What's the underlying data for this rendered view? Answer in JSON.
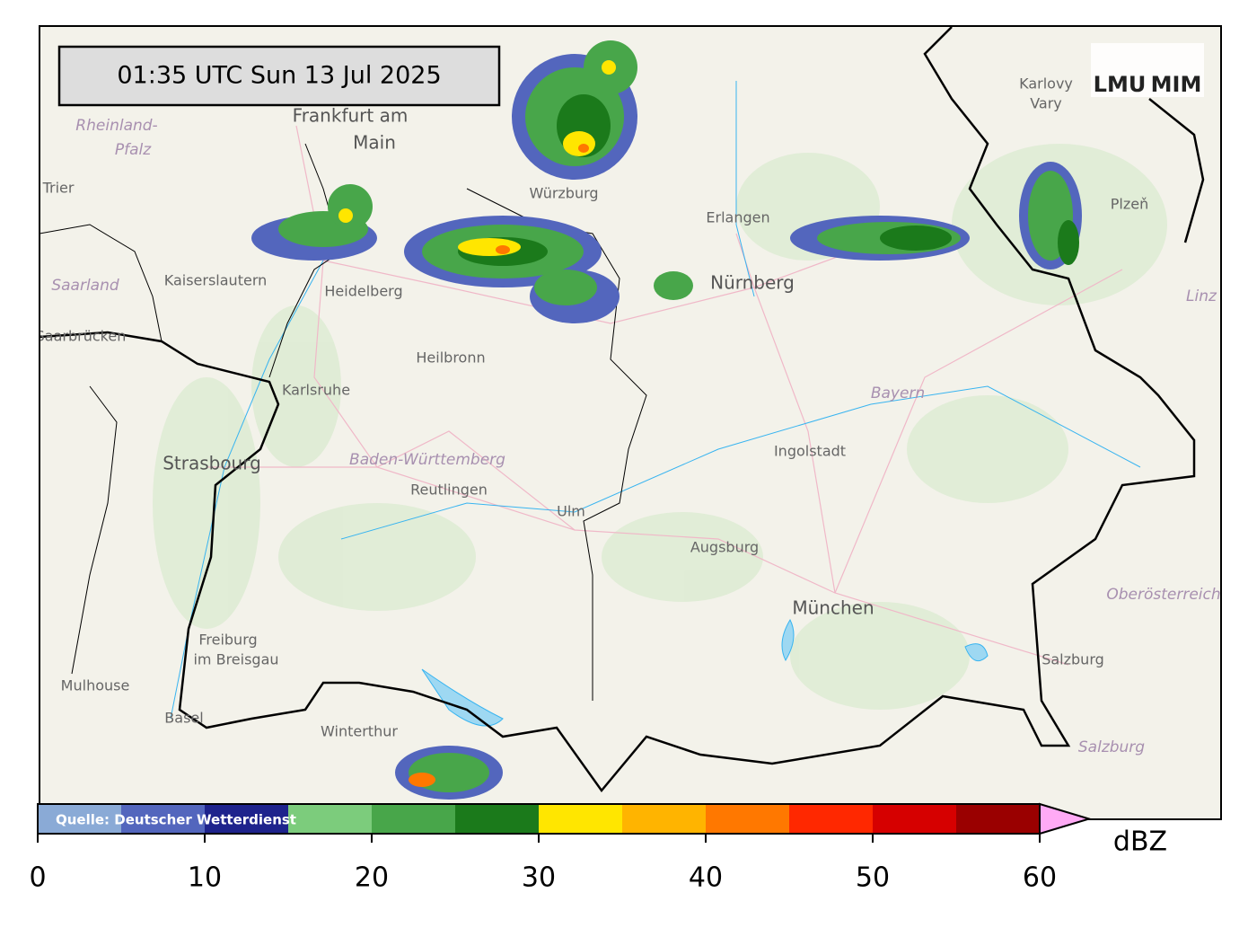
{
  "timestamp": "01:35 UTC  Sun 13 Jul 2025",
  "logos": [
    "LMU",
    "MIM"
  ],
  "map": {
    "labels": [
      {
        "text": "Frankfurt am",
        "kind": "city"
      },
      {
        "text": "Main",
        "kind": "city"
      },
      {
        "text": "Rheinland-",
        "kind": "region"
      },
      {
        "text": "Pfalz",
        "kind": "region"
      },
      {
        "text": "Trier",
        "kind": "town"
      },
      {
        "text": "Kaiserslautern",
        "kind": "town"
      },
      {
        "text": "Saarland",
        "kind": "region"
      },
      {
        "text": "Saarbrücken",
        "kind": "town"
      },
      {
        "text": "Heidelberg",
        "kind": "town"
      },
      {
        "text": "Heilbronn",
        "kind": "town"
      },
      {
        "text": "Karlsruhe",
        "kind": "town"
      },
      {
        "text": "Strasbourg",
        "kind": "city"
      },
      {
        "text": "Baden-Württemberg",
        "kind": "region"
      },
      {
        "text": "Reutlingen",
        "kind": "town"
      },
      {
        "text": "Ulm",
        "kind": "town"
      },
      {
        "text": "Augsburg",
        "kind": "town"
      },
      {
        "text": "Ingolstadt",
        "kind": "town"
      },
      {
        "text": "Bayern",
        "kind": "region"
      },
      {
        "text": "München",
        "kind": "city"
      },
      {
        "text": "Nürnberg",
        "kind": "city"
      },
      {
        "text": "Erlangen",
        "kind": "town"
      },
      {
        "text": "Würzburg",
        "kind": "town"
      },
      {
        "text": "Freiburg",
        "kind": "town"
      },
      {
        "text": "im Breisgau",
        "kind": "town"
      },
      {
        "text": "Mulhouse",
        "kind": "town"
      },
      {
        "text": "Basel",
        "kind": "town"
      },
      {
        "text": "Winterthur",
        "kind": "town"
      },
      {
        "text": "Salzburg",
        "kind": "town"
      },
      {
        "text": "Salzburg",
        "kind": "region"
      },
      {
        "text": "Oberösterreich",
        "kind": "region"
      },
      {
        "text": "Plzeň",
        "kind": "town"
      },
      {
        "text": "Karlovy",
        "kind": "town"
      },
      {
        "text": "Vary",
        "kind": "town"
      },
      {
        "text": "Linz",
        "kind": "region"
      }
    ]
  },
  "colorbar": {
    "source": "Quelle: Deutscher Wetterdienst",
    "unit": "dBZ",
    "lim": [
      0,
      60
    ],
    "ticks": [
      0,
      10,
      20,
      30,
      40,
      50,
      60
    ],
    "levels": [
      0,
      5,
      10,
      15,
      20,
      25,
      30,
      35,
      40,
      45,
      50,
      55,
      60
    ],
    "colors": [
      "#8aaad6",
      "#5366bd",
      "#1e238c",
      "#7ccc7c",
      "#48a64a",
      "#1b7a1b",
      "#ffe600",
      "#ffb400",
      "#ff7800",
      "#ff2800",
      "#d60000",
      "#9a0000"
    ],
    "extend_color": "#ffaaf5"
  }
}
